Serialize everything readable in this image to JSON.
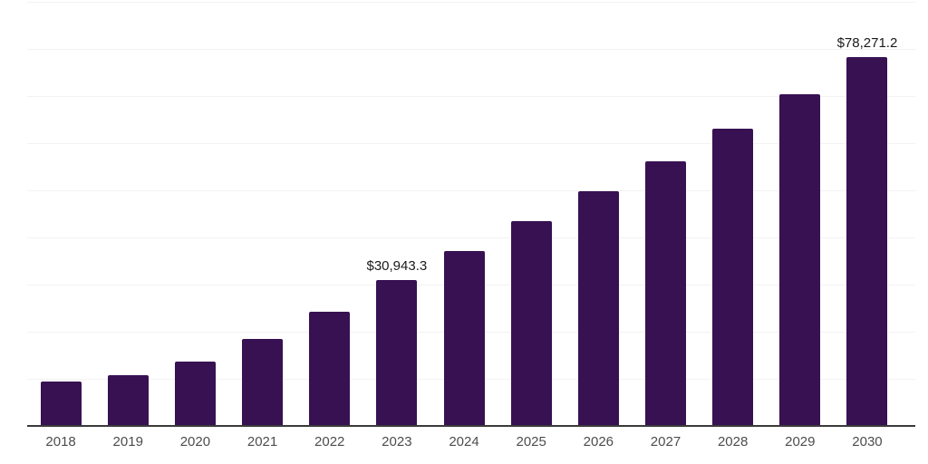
{
  "chart_data": {
    "type": "bar",
    "title": "",
    "xlabel": "",
    "ylabel": "",
    "categories": [
      "2018",
      "2019",
      "2020",
      "2021",
      "2022",
      "2023",
      "2024",
      "2025",
      "2026",
      "2027",
      "2028",
      "2029",
      "2030"
    ],
    "values": [
      9500,
      10700,
      13600,
      18400,
      24300,
      30943.3,
      37100,
      43500,
      49800,
      56200,
      63000,
      70300,
      78271.2
    ],
    "data_labels": [
      "",
      "",
      "",
      "",
      "",
      "$30,943.3",
      "",
      "",
      "",
      "",
      "",
      "",
      "$78,271.2"
    ],
    "ylim": [
      0,
      90000
    ],
    "gridline_step": 10000,
    "grid": true,
    "legend": "none",
    "colors": {
      "bar": "#381152",
      "gridline": "#f2f2f2",
      "axis_line": "#3a3a3a",
      "tick_text": "#4d4d4d",
      "label_text": "#1a1a1a",
      "background": "#ffffff"
    }
  }
}
